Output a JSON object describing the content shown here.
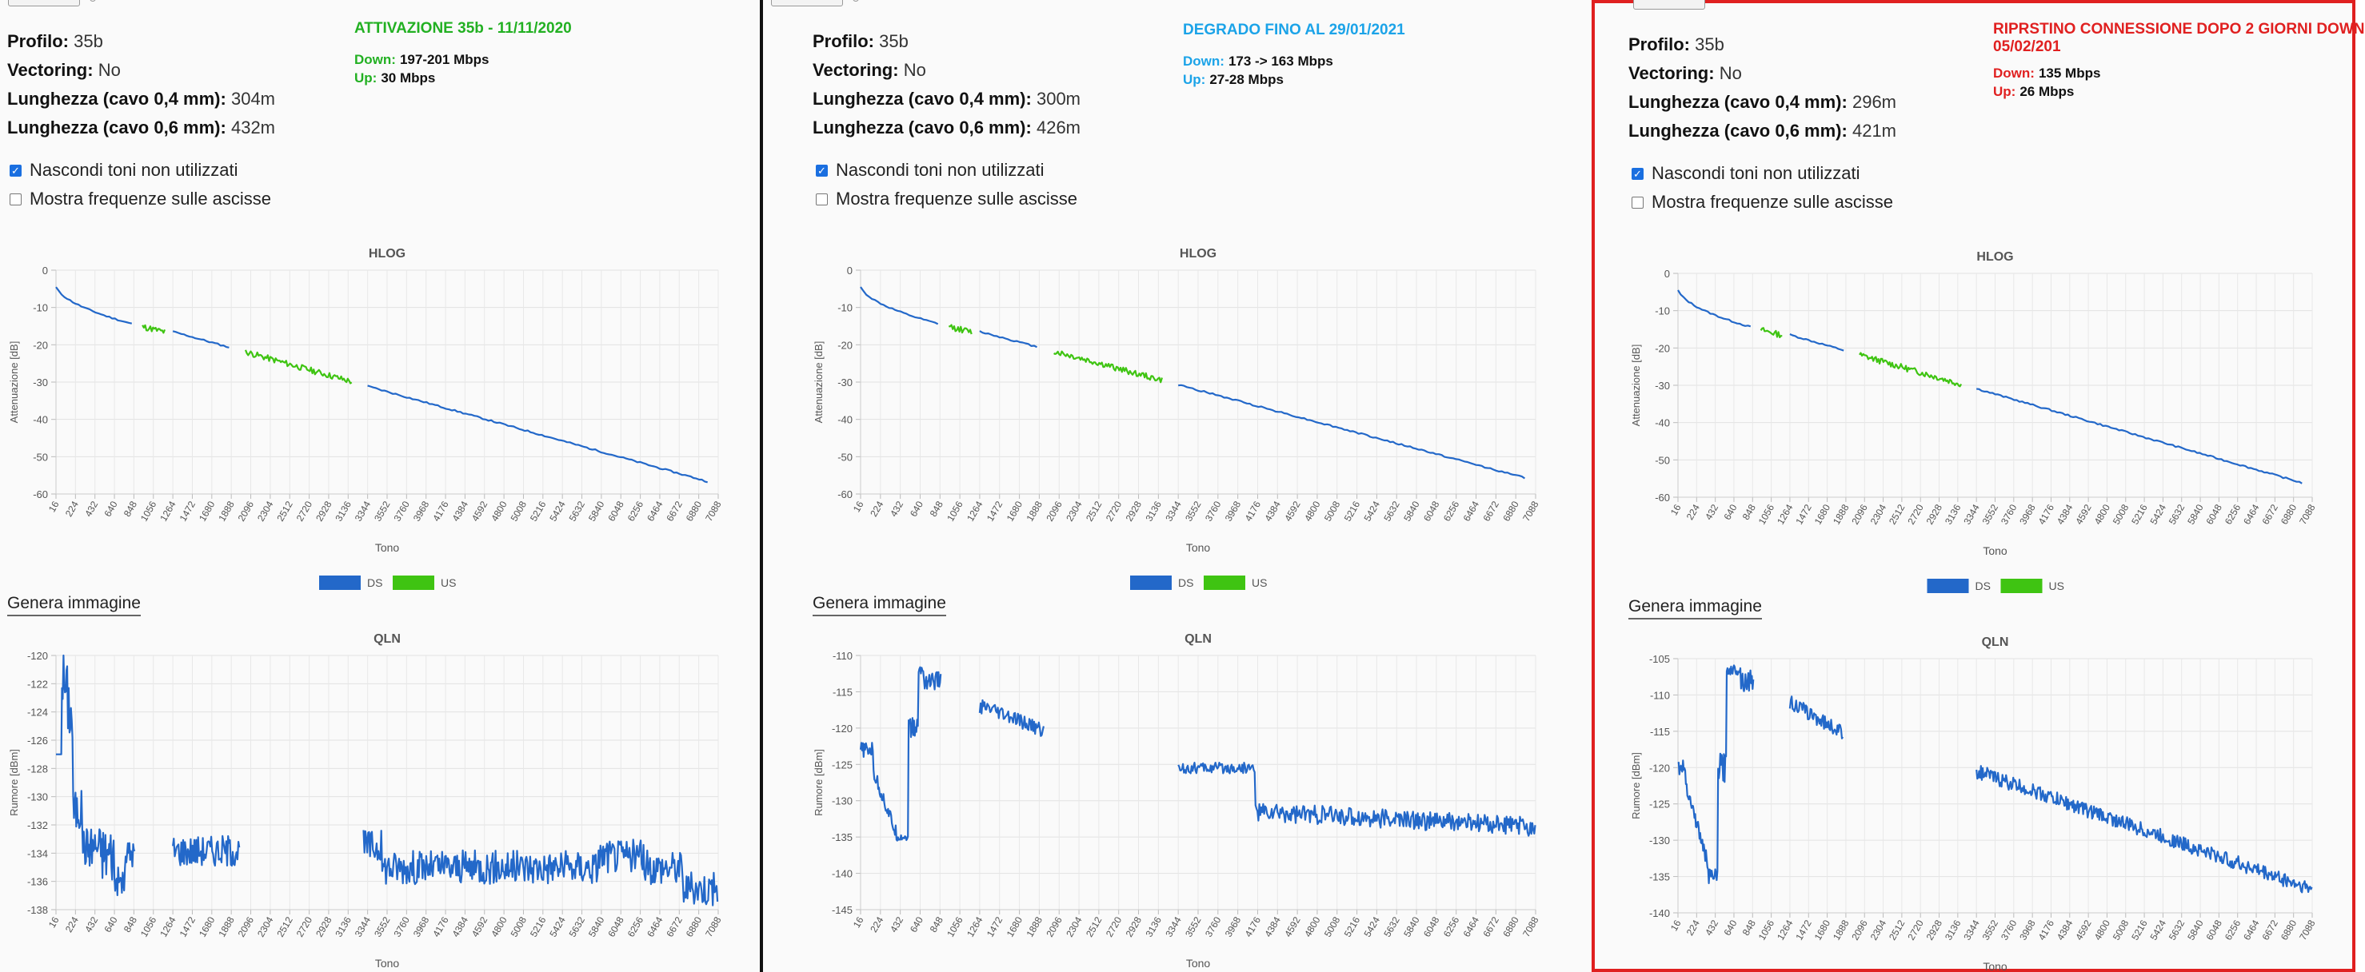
{
  "common": {
    "labels": {
      "profile": "Profilo:",
      "vectoring": "Vectoring:",
      "len04": "Lunghezza (cavo 0,4 mm):",
      "len06": "Lunghezza (cavo 0,6 mm):",
      "hide_tones": "Nascondi toni non utilizzati",
      "show_freq": "Mostra frequenze sulle ascisse",
      "generate": "Genera immagine",
      "down_label": "Down:",
      "up_label": "Up:"
    },
    "colors": {
      "ds": "#2368c9",
      "us": "#3fc412",
      "annot_green": "#22b022",
      "annot_blue": "#1ba3e8",
      "annot_red": "#e02020",
      "highlight_border": "#e02020"
    },
    "x_ticks": [
      "16",
      "224",
      "432",
      "640",
      "848",
      "1056",
      "1264",
      "1472",
      "1680",
      "1888",
      "2096",
      "2304",
      "2512",
      "2720",
      "2928",
      "3136",
      "3344",
      "3552",
      "3760",
      "3968",
      "4176",
      "4384",
      "4592",
      "4800",
      "5008",
      "5216",
      "5424",
      "5632",
      "5840",
      "6048",
      "6256",
      "6464",
      "6672",
      "6880",
      "7088"
    ]
  },
  "panels": [
    {
      "id": "p1",
      "profile": "35b",
      "vectoring": "No",
      "len04": "304m",
      "len06": "432m",
      "hide_tones_checked": true,
      "show_freq_checked": false,
      "annotation": {
        "title": "ATTIVAZIONE 35b - 11/11/2020",
        "down": "197-201 Mbps",
        "up": "30 Mbps",
        "color": "#22b022"
      },
      "hlog": {
        "title": "HLOG",
        "ylabel": "Attenuazione [dB]",
        "xlabel": "Tono",
        "ylim": [
          -60,
          0
        ],
        "yticks": [
          "0",
          "-10",
          "-20",
          "-30",
          "-40",
          "-50",
          "-60"
        ],
        "legend": [
          "DS",
          "US"
        ],
        "end_db": -56
      },
      "qln": {
        "title": "QLN",
        "ylabel": "Rumore [dBm]",
        "xlabel": "Tono",
        "ylim": [
          -138,
          -120
        ],
        "yticks": [
          "-120",
          "-122",
          "-124",
          "-126",
          "-128",
          "-130",
          "-132",
          "-134",
          "-136",
          "-138"
        ]
      }
    },
    {
      "id": "p2",
      "profile": "35b",
      "vectoring": "No",
      "len04": "300m",
      "len06": "426m",
      "hide_tones_checked": true,
      "show_freq_checked": false,
      "annotation": {
        "title": "DEGRADO FINO AL 29/01/2021",
        "down": " 173 -> 163 Mbps",
        "up": "27-28 Mbps",
        "color": "#1ba3e8"
      },
      "hlog": {
        "title": "HLOG",
        "ylabel": "Attenuazione [dB]",
        "xlabel": "Tono",
        "ylim": [
          -60,
          0
        ],
        "yticks": [
          "0",
          "-10",
          "-20",
          "-30",
          "-40",
          "-50",
          "-60"
        ],
        "legend": [
          "DS",
          "US"
        ],
        "end_db": -55
      },
      "qln": {
        "title": "QLN",
        "ylabel": "Rumore [dBm]",
        "xlabel": "Tono",
        "ylim": [
          -145,
          -110
        ],
        "yticks": [
          "-110",
          "-115",
          "-120",
          "-125",
          "-130",
          "-135",
          "-140",
          "-145"
        ]
      }
    },
    {
      "id": "p3",
      "profile": "35b",
      "vectoring": "No",
      "len04": "296m",
      "len06": "421m",
      "hide_tones_checked": true,
      "show_freq_checked": false,
      "annotation": {
        "title": "RIPRSTINO CONNESSIONE DOPO 2 GIORNI DOWN",
        "title2": "05/02/201",
        "down": "135 Mbps",
        "up": "26 Mbps",
        "color": "#e02020"
      },
      "hlog": {
        "title": "HLOG",
        "ylabel": "Attenuazione [dB]",
        "xlabel": "Tono",
        "ylim": [
          -60,
          0
        ],
        "yticks": [
          "0",
          "-10",
          "-20",
          "-30",
          "-40",
          "-50",
          "-60"
        ],
        "legend": [
          "DS",
          "US"
        ],
        "end_db": -55.5
      },
      "qln": {
        "title": "QLN",
        "ylabel": "Rumore [dBm]",
        "xlabel": "Tono",
        "ylim": [
          -140,
          -105
        ],
        "yticks": [
          "-105",
          "-110",
          "-115",
          "-120",
          "-125",
          "-130",
          "-135",
          "-140"
        ]
      }
    }
  ]
}
